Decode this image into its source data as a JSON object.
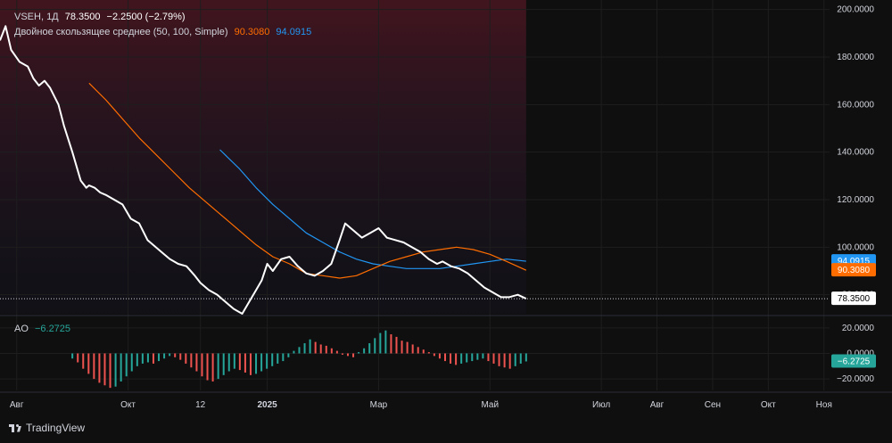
{
  "legend": {
    "symbol": "VSEH, 1Д",
    "last": "78.3500",
    "change": "−2.2500 (−2.79%)",
    "ma_title": "Двойное скользящее среднее (50, 100, Simple)",
    "ma_fast": "90.3080",
    "ma_slow": "94.0915",
    "ao_title": "AO",
    "ao_value": "−6.2725"
  },
  "branding": {
    "label": "TradingView"
  },
  "colors": {
    "price": "#ffffff",
    "ma_fast": "#ff6d00",
    "ma_slow": "#2196f3",
    "ao_up": "#26a69a",
    "ao_down": "#ef5350",
    "bg": "#0f0f0f",
    "grid": "#1e1e1e"
  },
  "chart_data": [
    {
      "type": "line",
      "panel": "price",
      "ylim": [
        72,
        204
      ],
      "y_ticks": [
        "200.0000",
        "180.0000",
        "160.0000",
        "140.0000",
        "120.0000",
        "100.0000",
        "80.0000"
      ],
      "x_ticks": [
        {
          "label": "Авг",
          "x": 0.3
        },
        {
          "label": "Окт",
          "x": 2.3
        },
        {
          "label": "12",
          "x": 3.6
        },
        {
          "label": "2025",
          "x": 4.8
        },
        {
          "label": "Мар",
          "x": 6.8
        },
        {
          "label": "Май",
          "x": 8.8
        },
        {
          "label": "Июл",
          "x": 10.8
        },
        {
          "label": "Авг",
          "x": 11.8
        },
        {
          "label": "Сен",
          "x": 12.8
        },
        {
          "label": "Окт",
          "x": 13.8
        },
        {
          "label": "Ноя",
          "x": 14.8
        }
      ],
      "series": [
        {
          "key": "price",
          "x": [
            0.0,
            0.1,
            0.2,
            0.35,
            0.5,
            0.6,
            0.7,
            0.8,
            0.9,
            1.05,
            1.15,
            1.3,
            1.45,
            1.55,
            1.6,
            1.7,
            1.8,
            1.9,
            2.05,
            2.2,
            2.35,
            2.5,
            2.65,
            2.8,
            2.95,
            3.05,
            3.2,
            3.35,
            3.5,
            3.6,
            3.75,
            3.9,
            4.0,
            4.1,
            4.2,
            4.35,
            4.5,
            4.6,
            4.7,
            4.8,
            4.9,
            5.05,
            5.2,
            5.35,
            5.5,
            5.65,
            5.8,
            5.95,
            6.1,
            6.2,
            6.35,
            6.5,
            6.65,
            6.8,
            6.95,
            7.1,
            7.25,
            7.4,
            7.55,
            7.7,
            7.85,
            7.95,
            8.1,
            8.25,
            8.4,
            8.55,
            8.7,
            8.85,
            9.0,
            9.15,
            9.3,
            9.45
          ],
          "values": [
            187,
            193,
            183,
            178,
            176,
            171,
            168,
            170,
            167,
            160,
            151,
            140,
            128,
            125,
            126,
            125,
            123,
            122,
            120,
            118,
            112,
            110,
            103,
            100,
            97,
            95,
            93,
            92,
            88,
            85,
            82,
            80,
            78,
            76,
            74,
            72,
            78,
            82,
            86,
            93,
            90,
            95,
            96,
            92,
            89,
            88,
            90,
            93,
            103,
            110,
            107,
            104,
            106,
            108,
            104,
            103,
            102,
            100,
            98,
            95,
            93,
            94,
            92,
            91,
            89,
            86,
            83,
            81,
            79,
            79,
            80,
            78.35
          ]
        },
        {
          "key": "ma_fast",
          "x": [
            1.6,
            1.9,
            2.2,
            2.5,
            2.8,
            3.1,
            3.4,
            3.7,
            4.0,
            4.3,
            4.6,
            4.9,
            5.2,
            5.5,
            5.8,
            6.1,
            6.4,
            6.7,
            7.0,
            7.3,
            7.6,
            7.9,
            8.2,
            8.5,
            8.8,
            9.1,
            9.45
          ],
          "values": [
            169,
            162,
            154,
            146,
            139,
            132,
            125,
            119,
            113,
            107,
            101,
            96,
            93,
            89,
            88,
            87,
            88,
            91,
            94,
            96,
            98,
            99,
            100,
            99,
            97,
            94,
            90.308
          ]
        },
        {
          "key": "ma_slow",
          "x": [
            3.95,
            4.3,
            4.6,
            4.9,
            5.2,
            5.5,
            5.8,
            6.1,
            6.4,
            6.7,
            7.0,
            7.3,
            7.6,
            7.9,
            8.2,
            8.5,
            8.8,
            9.1,
            9.45
          ],
          "values": [
            141,
            133,
            125,
            118,
            112,
            106,
            102,
            98,
            95,
            93,
            92,
            91,
            91,
            91,
            92,
            93,
            94,
            95,
            94.0915
          ]
        }
      ]
    },
    {
      "type": "bar",
      "panel": "ao",
      "ylim": [
        -29,
        29
      ],
      "y_ticks": [
        "20.0000",
        "0.0000",
        "−20.0000"
      ],
      "x_start": 1.3,
      "x_end": 9.45,
      "values": [
        -4,
        -7,
        -12,
        -16,
        -20,
        -23,
        -25,
        -27,
        -26,
        -22,
        -18,
        -14,
        -10,
        -8,
        -7,
        -8,
        -6,
        -4,
        -2,
        -3,
        -5,
        -8,
        -11,
        -14,
        -18,
        -21,
        -22,
        -20,
        -17,
        -14,
        -12,
        -13,
        -15,
        -17,
        -16,
        -14,
        -12,
        -10,
        -8,
        -6,
        -3,
        2,
        5,
        8,
        11,
        9,
        7,
        6,
        4,
        2,
        -1,
        -2,
        -3,
        1,
        4,
        8,
        12,
        16,
        18,
        15,
        13,
        10,
        9,
        7,
        5,
        3,
        1,
        -2,
        -4,
        -6,
        -8,
        -9,
        -8,
        -7,
        -6,
        -5,
        -4,
        -6,
        -8,
        -10,
        -11,
        -12,
        -10,
        -8,
        -6.2725
      ]
    }
  ]
}
